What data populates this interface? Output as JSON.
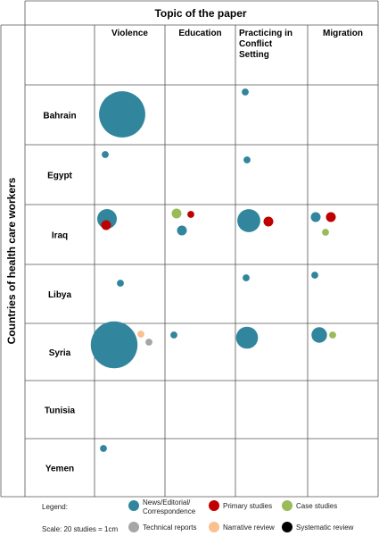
{
  "chart_data": {
    "type": "scatter",
    "title": "Topic of the paper",
    "ylabel": "Countries of health care workers",
    "columns": [
      "Violence",
      "Education",
      "Practicing in Conflict Setting",
      "Migration"
    ],
    "rows": [
      "Bahrain",
      "Egypt",
      "Iraq",
      "Libya",
      "Syria",
      "Tunisia",
      "Yemen"
    ],
    "series": [
      {
        "name": "News/Editorial/ Correspondence",
        "color": "#31859c"
      },
      {
        "name": "Primary studies",
        "color": "#c00000"
      },
      {
        "name": "Case studies",
        "color": "#9bbb59"
      },
      {
        "name": "Technical reports",
        "color": "#a6a6a6"
      },
      {
        "name": "Narrative review",
        "color": "#fac090"
      },
      {
        "name": "Systematic review",
        "color": "#000000"
      }
    ],
    "points": [
      {
        "row": "Bahrain",
        "column": "Violence",
        "series": "News/Editorial/ Correspondence",
        "studies": 44
      },
      {
        "row": "Bahrain",
        "column": "Practicing in Conflict Setting",
        "series": "News/Editorial/ Correspondence",
        "studies": 1
      },
      {
        "row": "Egypt",
        "column": "Violence",
        "series": "News/Editorial/ Correspondence",
        "studies": 1
      },
      {
        "row": "Egypt",
        "column": "Practicing in Conflict Setting",
        "series": "News/Editorial/ Correspondence",
        "studies": 1
      },
      {
        "row": "Iraq",
        "column": "Violence",
        "series": "News/Editorial/ Correspondence",
        "studies": 8
      },
      {
        "row": "Iraq",
        "column": "Violence",
        "series": "Primary studies",
        "studies": 2
      },
      {
        "row": "Iraq",
        "column": "Education",
        "series": "Case studies",
        "studies": 2
      },
      {
        "row": "Iraq",
        "column": "Education",
        "series": "Primary studies",
        "studies": 1
      },
      {
        "row": "Iraq",
        "column": "Education",
        "series": "News/Editorial/ Correspondence",
        "studies": 2
      },
      {
        "row": "Iraq",
        "column": "Practicing in Conflict Setting",
        "series": "News/Editorial/ Correspondence",
        "studies": 11
      },
      {
        "row": "Iraq",
        "column": "Practicing in Conflict Setting",
        "series": "Primary studies",
        "studies": 2
      },
      {
        "row": "Iraq",
        "column": "Migration",
        "series": "News/Editorial/ Correspondence",
        "studies": 2
      },
      {
        "row": "Iraq",
        "column": "Migration",
        "series": "Primary studies",
        "studies": 2
      },
      {
        "row": "Iraq",
        "column": "Migration",
        "series": "Case studies",
        "studies": 1
      },
      {
        "row": "Libya",
        "column": "Violence",
        "series": "News/Editorial/ Correspondence",
        "studies": 1
      },
      {
        "row": "Libya",
        "column": "Practicing in Conflict Setting",
        "series": "News/Editorial/ Correspondence",
        "studies": 1
      },
      {
        "row": "Libya",
        "column": "Migration",
        "series": "News/Editorial/ Correspondence",
        "studies": 1
      },
      {
        "row": "Syria",
        "column": "Violence",
        "series": "News/Editorial/ Correspondence",
        "studies": 45
      },
      {
        "row": "Syria",
        "column": "Violence",
        "series": "Narrative review",
        "studies": 1
      },
      {
        "row": "Syria",
        "column": "Violence",
        "series": "Technical reports",
        "studies": 1
      },
      {
        "row": "Syria",
        "column": "Education",
        "series": "News/Editorial/ Correspondence",
        "studies": 1
      },
      {
        "row": "Syria",
        "column": "Practicing in Conflict Setting",
        "series": "News/Editorial/ Correspondence",
        "studies": 10
      },
      {
        "row": "Syria",
        "column": "Migration",
        "series": "News/Editorial/ Correspondence",
        "studies": 5
      },
      {
        "row": "Syria",
        "column": "Migration",
        "series": "Case studies",
        "studies": 1
      },
      {
        "row": "Yemen",
        "column": "Violence",
        "series": "News/Editorial/ Correspondence",
        "studies": 1
      }
    ],
    "legend_title": "Legend:",
    "scale_note": "Scale: 20 studies = 1cm",
    "legend_position": "bottom",
    "grid": true
  }
}
